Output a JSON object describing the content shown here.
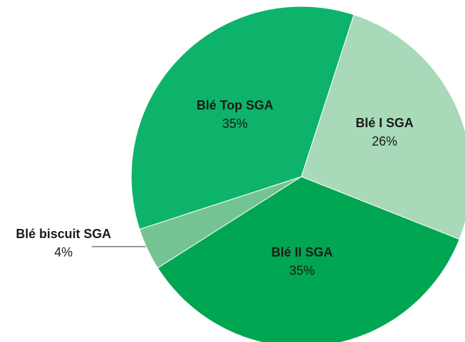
{
  "chart_data": {
    "type": "pie",
    "categories": [
      "Blé I SGA",
      "Blé II SGA",
      "Blé biscuit SGA",
      "Blé Top SGA"
    ],
    "values": [
      26,
      35,
      4,
      35
    ],
    "value_labels": [
      "26%",
      "35%",
      "4%",
      "35%"
    ],
    "colors": [
      "#a8d9b8",
      "#00a651",
      "#74c493",
      "#0db36b"
    ]
  }
}
